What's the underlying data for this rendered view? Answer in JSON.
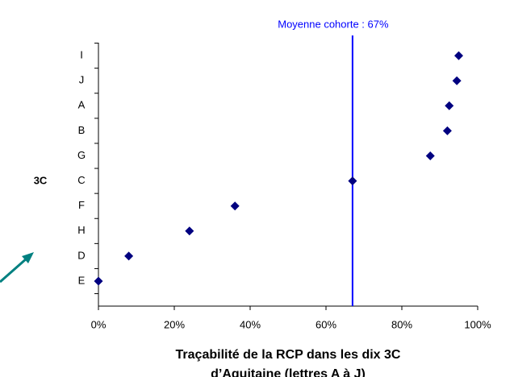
{
  "chart_data": {
    "type": "scatter",
    "xlabel": [
      "Traçabilité de la RCP dans les dix 3C",
      "d’Aquitaine (lettres A à J)"
    ],
    "ylabel": "3C",
    "categories": [
      "E",
      "D",
      "H",
      "F",
      "C",
      "G",
      "B",
      "A",
      "J",
      "I"
    ],
    "values": [
      0,
      8,
      24,
      36,
      67,
      87.5,
      92,
      92.5,
      94.5,
      95
    ],
    "color": "#000080",
    "xlim": [
      0,
      100
    ],
    "xticks": [
      {
        "value": 0,
        "label": "0%"
      },
      {
        "value": 20,
        "label": "20%"
      },
      {
        "value": 40,
        "label": "40%"
      },
      {
        "value": 60,
        "label": "60%"
      },
      {
        "value": 80,
        "label": "80%"
      },
      {
        "value": 100,
        "label": "100%"
      }
    ],
    "mean_line": {
      "value": 67,
      "label": "Moyenne cohorte : 67%",
      "color": "#0000ff"
    }
  }
}
